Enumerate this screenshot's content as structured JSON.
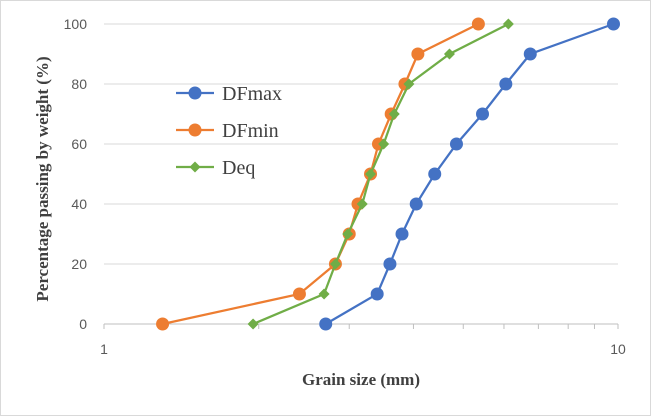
{
  "chart_data": {
    "type": "scatter",
    "title": "",
    "xlabel": "Grain size (mm)",
    "ylabel": "Percentage passing by weight (%)",
    "x_scale": "log",
    "xlim": [
      1,
      10
    ],
    "ylim": [
      0,
      100
    ],
    "x_tick_labels": [
      "1",
      "10"
    ],
    "y_tick_labels": [
      "0",
      "20",
      "40",
      "60",
      "80",
      "100"
    ],
    "grid": "horizontal",
    "legend_position": "upper-left",
    "series": [
      {
        "name": "DFmax",
        "color": "#4472c4",
        "marker": "circle",
        "x": [
          2.7,
          3.4,
          3.6,
          3.8,
          4.05,
          4.4,
          4.85,
          5.45,
          6.05,
          6.75,
          9.8
        ],
        "y": [
          0,
          10,
          20,
          30,
          40,
          50,
          60,
          70,
          80,
          90,
          100
        ]
      },
      {
        "name": "DFmin",
        "color": "#ed7d31",
        "marker": "circle",
        "x": [
          1.3,
          2.4,
          2.82,
          3.0,
          3.12,
          3.3,
          3.42,
          3.62,
          3.85,
          4.08,
          5.35
        ],
        "y": [
          0,
          10,
          20,
          30,
          40,
          50,
          60,
          70,
          80,
          90,
          100
        ]
      },
      {
        "name": "Deq",
        "color": "#70ad47",
        "marker": "diamond",
        "x": [
          1.95,
          2.68,
          2.82,
          2.98,
          3.18,
          3.3,
          3.5,
          3.67,
          3.92,
          4.7,
          6.12
        ],
        "y": [
          0,
          10,
          20,
          30,
          40,
          50,
          60,
          70,
          80,
          90,
          100
        ]
      }
    ]
  }
}
